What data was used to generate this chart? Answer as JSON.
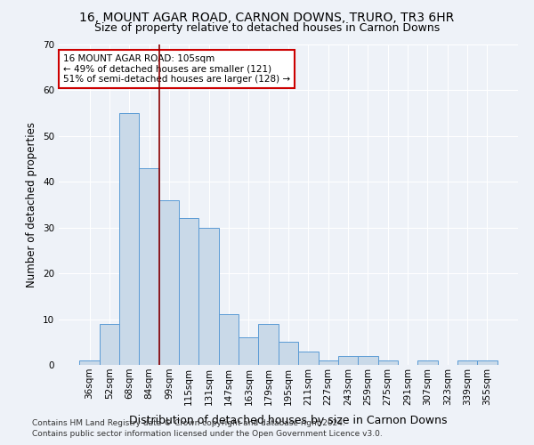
{
  "title": "16, MOUNT AGAR ROAD, CARNON DOWNS, TRURO, TR3 6HR",
  "subtitle": "Size of property relative to detached houses in Carnon Downs",
  "xlabel": "Distribution of detached houses by size in Carnon Downs",
  "ylabel": "Number of detached properties",
  "bar_labels": [
    "36sqm",
    "52sqm",
    "68sqm",
    "84sqm",
    "99sqm",
    "115sqm",
    "131sqm",
    "147sqm",
    "163sqm",
    "179sqm",
    "195sqm",
    "211sqm",
    "227sqm",
    "243sqm",
    "259sqm",
    "275sqm",
    "291sqm",
    "307sqm",
    "323sqm",
    "339sqm",
    "355sqm"
  ],
  "bar_values": [
    1,
    9,
    55,
    43,
    36,
    32,
    30,
    11,
    6,
    9,
    5,
    3,
    1,
    2,
    2,
    1,
    0,
    1,
    0,
    1,
    1
  ],
  "bar_color": "#c9d9e8",
  "bar_edge_color": "#5b9bd5",
  "ylim": [
    0,
    70
  ],
  "yticks": [
    0,
    10,
    20,
    30,
    40,
    50,
    60,
    70
  ],
  "property_line_color": "#8b0000",
  "annotation_text": "16 MOUNT AGAR ROAD: 105sqm\n← 49% of detached houses are smaller (121)\n51% of semi-detached houses are larger (128) →",
  "annotation_box_facecolor": "#ffffff",
  "annotation_box_edgecolor": "#cc0000",
  "footer_line1": "Contains HM Land Registry data © Crown copyright and database right 2024.",
  "footer_line2": "Contains public sector information licensed under the Open Government Licence v3.0.",
  "background_color": "#eef2f8",
  "plot_background_color": "#eef2f8",
  "title_fontsize": 10,
  "subtitle_fontsize": 9,
  "tick_fontsize": 7.5,
  "ylabel_fontsize": 8.5,
  "xlabel_fontsize": 9,
  "footer_fontsize": 6.5
}
